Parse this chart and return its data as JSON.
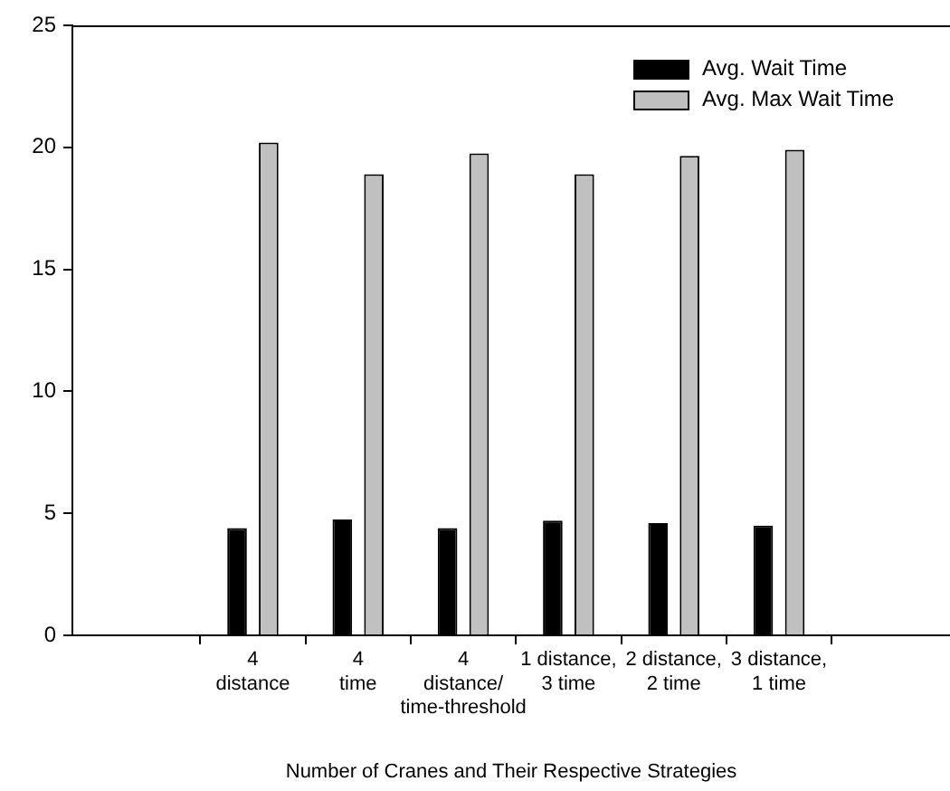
{
  "chart_data": {
    "type": "bar",
    "xlabel": "Number of Cranes and Their Respective Strategies",
    "categories": [
      "4\ndistance",
      "4\ntime",
      "4\ndistance/\ntime-threshold",
      "1 distance,\n3 time",
      "2 distance,\n2 time",
      "3 distance,\n1 time"
    ],
    "series": [
      {
        "name": "Avg. Wait Time",
        "color": "#000000",
        "values": [
          4.4,
          4.75,
          4.4,
          4.7,
          4.6,
          4.5
        ]
      },
      {
        "name": "Avg. Max Wait Time",
        "color": "#c0c0c0",
        "values": [
          20.2,
          18.9,
          19.75,
          18.9,
          19.65,
          19.9
        ]
      }
    ],
    "ylim": [
      0,
      25
    ],
    "yticks": [
      0,
      5,
      10,
      15,
      20,
      25
    ],
    "grid": false,
    "legend": "top right"
  }
}
